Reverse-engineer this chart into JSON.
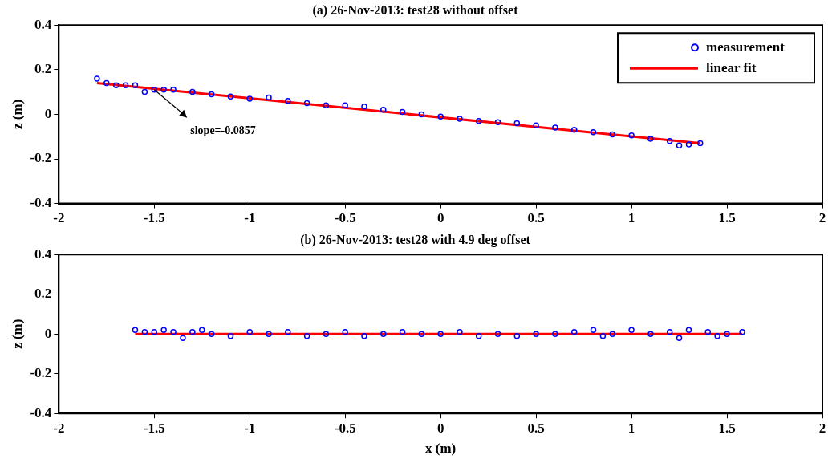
{
  "chart_data": [
    {
      "type": "scatter",
      "title": "(a) 26-Nov-2013: test28 without offset",
      "ylabel": "z (m)",
      "xlim": [
        -2,
        2
      ],
      "xticks": [
        -2,
        -1.5,
        -1,
        -0.5,
        0,
        0.5,
        1,
        1.5,
        2
      ],
      "ylim": [
        -0.4,
        0.4
      ],
      "yticks": [
        -0.4,
        -0.2,
        0,
        0.2,
        0.4
      ],
      "grid": false,
      "legend": "top right",
      "annotations": [
        {
          "text": "slope=-0.0857",
          "x": -1.5,
          "y": 0.11
        }
      ],
      "series": [
        {
          "name": "measurement",
          "marker": "circle",
          "color": "#0000ff",
          "x": [
            -1.8,
            -1.75,
            -1.7,
            -1.65,
            -1.6,
            -1.55,
            -1.5,
            -1.45,
            -1.4,
            -1.3,
            -1.2,
            -1.1,
            -1.0,
            -0.9,
            -0.8,
            -0.7,
            -0.6,
            -0.5,
            -0.4,
            -0.3,
            -0.2,
            -0.1,
            0,
            0.1,
            0.2,
            0.3,
            0.4,
            0.5,
            0.6,
            0.7,
            0.8,
            0.9,
            1.0,
            1.1,
            1.2,
            1.25,
            1.3,
            1.36
          ],
          "values": [
            0.16,
            0.14,
            0.13,
            0.13,
            0.13,
            0.1,
            0.11,
            0.11,
            0.11,
            0.1,
            0.09,
            0.08,
            0.07,
            0.075,
            0.06,
            0.05,
            0.04,
            0.04,
            0.035,
            0.02,
            0.01,
            0.0,
            -0.01,
            -0.02,
            -0.03,
            -0.035,
            -0.04,
            -0.05,
            -0.06,
            -0.07,
            -0.08,
            -0.09,
            -0.095,
            -0.11,
            -0.12,
            -0.14,
            -0.135,
            -0.13
          ]
        },
        {
          "name": "linear fit",
          "type": "line",
          "color": "#ff0000",
          "x": [
            -1.8,
            1.36
          ],
          "values": [
            0.14,
            -0.13
          ]
        }
      ]
    },
    {
      "type": "scatter",
      "title": "(b) 26-Nov-2013: test28 with 4.9 deg offset",
      "xlabel": "x (m)",
      "ylabel": "z (m)",
      "xlim": [
        -2,
        2
      ],
      "xticks": [
        -2,
        -1.5,
        -1,
        -0.5,
        0,
        0.5,
        1,
        1.5,
        2
      ],
      "ylim": [
        -0.4,
        0.4
      ],
      "yticks": [
        -0.4,
        -0.2,
        0,
        0.2,
        0.4
      ],
      "grid": false,
      "series": [
        {
          "marker": "circle",
          "color": "#0000ff",
          "x": [
            -1.6,
            -1.55,
            -1.5,
            -1.45,
            -1.4,
            -1.35,
            -1.3,
            -1.25,
            -1.2,
            -1.1,
            -1.0,
            -0.9,
            -0.8,
            -0.7,
            -0.6,
            -0.5,
            -0.4,
            -0.3,
            -0.2,
            -0.1,
            0,
            0.1,
            0.2,
            0.3,
            0.4,
            0.5,
            0.6,
            0.7,
            0.8,
            0.85,
            0.9,
            1.0,
            1.1,
            1.2,
            1.25,
            1.3,
            1.4,
            1.45,
            1.5,
            1.58
          ],
          "values": [
            0.02,
            0.01,
            0.01,
            0.02,
            0.01,
            -0.02,
            0.01,
            0.02,
            0.0,
            -0.01,
            0.01,
            0.0,
            0.01,
            -0.01,
            0.0,
            0.01,
            -0.01,
            0.0,
            0.01,
            0.0,
            0.0,
            0.01,
            -0.01,
            0.0,
            -0.01,
            0.0,
            0.0,
            0.01,
            0.02,
            -0.01,
            0.0,
            0.02,
            0.0,
            0.01,
            -0.02,
            0.02,
            0.01,
            -0.01,
            0.0,
            0.01
          ]
        },
        {
          "type": "line",
          "color": "#ff0000",
          "x": [
            -1.6,
            1.58
          ],
          "values": [
            0.0,
            0.0
          ]
        }
      ]
    }
  ]
}
